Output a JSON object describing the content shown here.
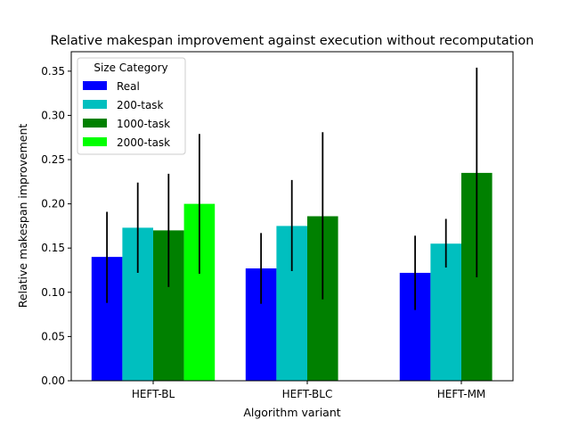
{
  "chart_data": {
    "type": "bar",
    "title": "Relative makespan improvement against execution without recomputation",
    "xlabel": "Algorithm variant",
    "ylabel": "Relative makespan improvement",
    "ylim": [
      0,
      0.372
    ],
    "yticks": [
      0.0,
      0.05,
      0.1,
      0.15,
      0.2,
      0.25,
      0.3,
      0.35
    ],
    "categories": [
      "HEFT-BL",
      "HEFT-BLC",
      "HEFT-MM"
    ],
    "legend": {
      "title": "Size Category",
      "position": "top-left"
    },
    "grid": false,
    "series": [
      {
        "name": "Real",
        "color": "#0000ff",
        "values": [
          0.14,
          0.127,
          0.122
        ],
        "err_low": [
          0.088,
          0.087,
          0.08
        ],
        "err_high": [
          0.191,
          0.167,
          0.164
        ]
      },
      {
        "name": "200-task",
        "color": "#00bfbf",
        "values": [
          0.173,
          0.175,
          0.155
        ],
        "err_low": [
          0.122,
          0.124,
          0.128
        ],
        "err_high": [
          0.224,
          0.227,
          0.183
        ]
      },
      {
        "name": "1000-task",
        "color": "#008000",
        "values": [
          0.17,
          0.186,
          0.235
        ],
        "err_low": [
          0.106,
          0.092,
          0.117
        ],
        "err_high": [
          0.234,
          0.281,
          0.354
        ]
      },
      {
        "name": "2000-task",
        "color": "#00ff00",
        "values": [
          0.2,
          null,
          null
        ],
        "err_low": [
          0.121,
          null,
          null
        ],
        "err_high": [
          0.279,
          null,
          null
        ]
      }
    ]
  }
}
